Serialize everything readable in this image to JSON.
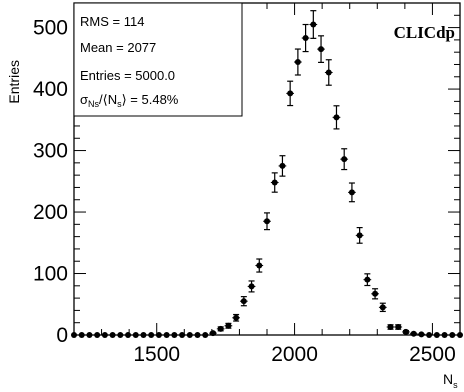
{
  "chart_data": {
    "type": "scatter",
    "xlabel": "N",
    "xlabel_sub": "s",
    "ylabel": "Entries",
    "xlim": [
      1200,
      2600
    ],
    "ylim": [
      0,
      540
    ],
    "x_ticks": [
      1500,
      2000,
      2500
    ],
    "y_ticks": [
      0,
      100,
      200,
      300,
      400,
      500
    ],
    "grid": false,
    "watermark": "CLICdp",
    "stats_box": {
      "rms": "RMS = 114",
      "mean": "Mean = 2077",
      "entries": "Entries = 5000.0",
      "resolution_sigma": "σ",
      "resolution_sigma_sub": "Ns",
      "resolution_mid": "/⟨N",
      "resolution_mid_sub": "s",
      "resolution_tail": "⟩ = 5.48%"
    },
    "series": [
      {
        "marker": "circle",
        "color": "#000000",
        "x": [
          1200,
          1228,
          1256,
          1284,
          1312,
          1340,
          1368,
          1396,
          1424,
          1452,
          1480,
          1508,
          1536,
          1564,
          1592,
          1620,
          1648,
          1676,
          1704,
          1732,
          1760,
          1788,
          1816,
          1844,
          1872,
          1900,
          1928,
          1956,
          1984,
          2012,
          2040,
          2068,
          2096,
          2124,
          2152,
          2180,
          2208,
          2236,
          2264,
          2292,
          2320,
          2348,
          2376,
          2404,
          2432,
          2460,
          2488,
          2516,
          2544,
          2572,
          2600
        ],
        "y": [
          0,
          0,
          0,
          0,
          0,
          0,
          0,
          0,
          0,
          0,
          0,
          0,
          0,
          0,
          0,
          0,
          0,
          0,
          3,
          10,
          15,
          28,
          55,
          79,
          113,
          185,
          248,
          275,
          393,
          444,
          483,
          505,
          465,
          427,
          354,
          286,
          232,
          162,
          90,
          67,
          45,
          13,
          13,
          5,
          2,
          1,
          0,
          0,
          0,
          0,
          0
        ],
        "err": [
          0,
          0,
          0,
          0,
          0,
          0,
          0,
          0,
          0,
          0,
          0,
          0,
          0,
          0,
          0,
          0,
          0,
          0,
          1.7,
          3.2,
          3.9,
          5.3,
          7.4,
          8.9,
          10.6,
          13.6,
          15.7,
          16.6,
          19.8,
          21.1,
          22.0,
          22.5,
          21.6,
          20.7,
          18.8,
          16.9,
          15.2,
          12.7,
          9.5,
          8.2,
          6.7,
          3.6,
          3.6,
          2.2,
          1.4,
          1,
          0,
          0,
          0,
          0,
          0
        ]
      }
    ]
  }
}
